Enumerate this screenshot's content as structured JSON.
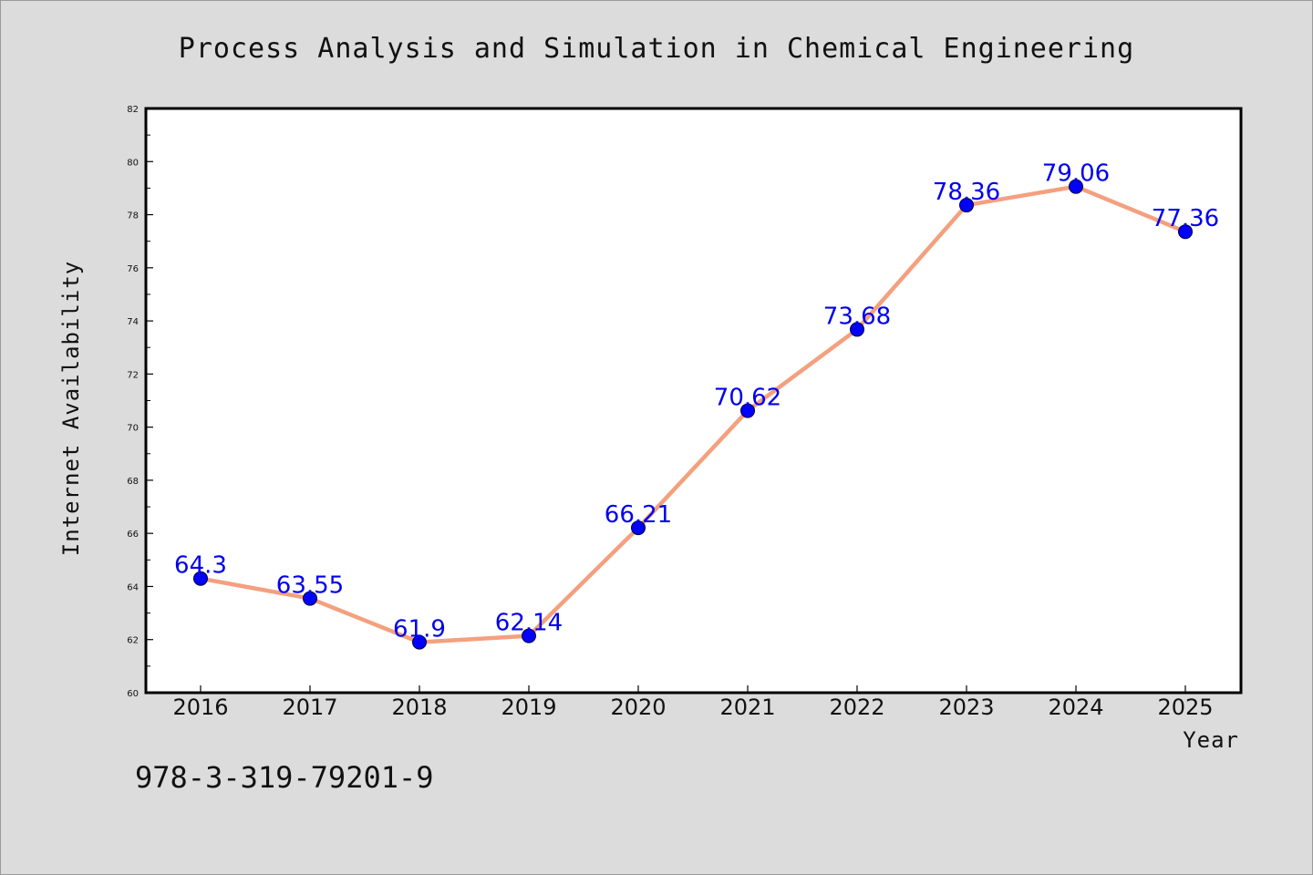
{
  "chart_data": {
    "type": "line",
    "title": "Process Analysis and Simulation in Chemical Engineering",
    "xlabel": "Year",
    "ylabel": "Internet Availability",
    "x": [
      "2016",
      "2017",
      "2018",
      "2019",
      "2020",
      "2021",
      "2022",
      "2023",
      "2024",
      "2025"
    ],
    "series": [
      {
        "values": [
          64.3,
          63.55,
          61.9,
          62.14,
          66.21,
          70.62,
          73.68,
          78.36,
          79.06,
          77.36
        ],
        "labels": [
          "64.3",
          "63.55",
          "61.9",
          "62.14",
          "66.21",
          "70.62",
          "73.68",
          "78.36",
          "79.06",
          "77.36"
        ]
      }
    ],
    "ylim": [
      60,
      82
    ],
    "yticks": [
      "60",
      "62",
      "64",
      "66",
      "68",
      "70",
      "72",
      "74",
      "76",
      "78",
      "80",
      "82"
    ],
    "grid": false,
    "line_color": "#f4a07e",
    "marker_color": "#0000ff",
    "label_color": "#0000ee"
  },
  "footer": {
    "isbn": "978-3-319-79201-9"
  },
  "colors": {
    "background": "#dcdcdc",
    "plot_background": "#ffffff"
  }
}
